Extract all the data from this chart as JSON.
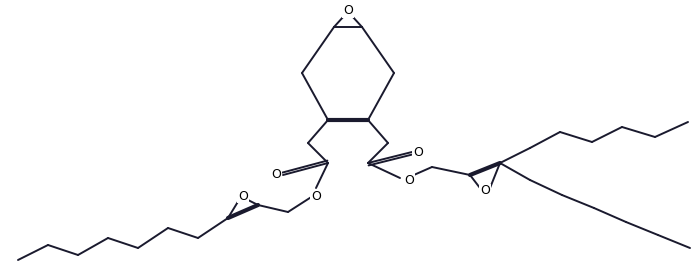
{
  "bg_color": "#ffffff",
  "line_color": "#1a1a2e",
  "lw": 1.4,
  "lw_bold": 3.0,
  "figsize": [
    6.95,
    2.74
  ],
  "dpi": 100,
  "xlim": [
    0,
    695
  ],
  "ylim": [
    0,
    274
  ],
  "font_size": 9
}
